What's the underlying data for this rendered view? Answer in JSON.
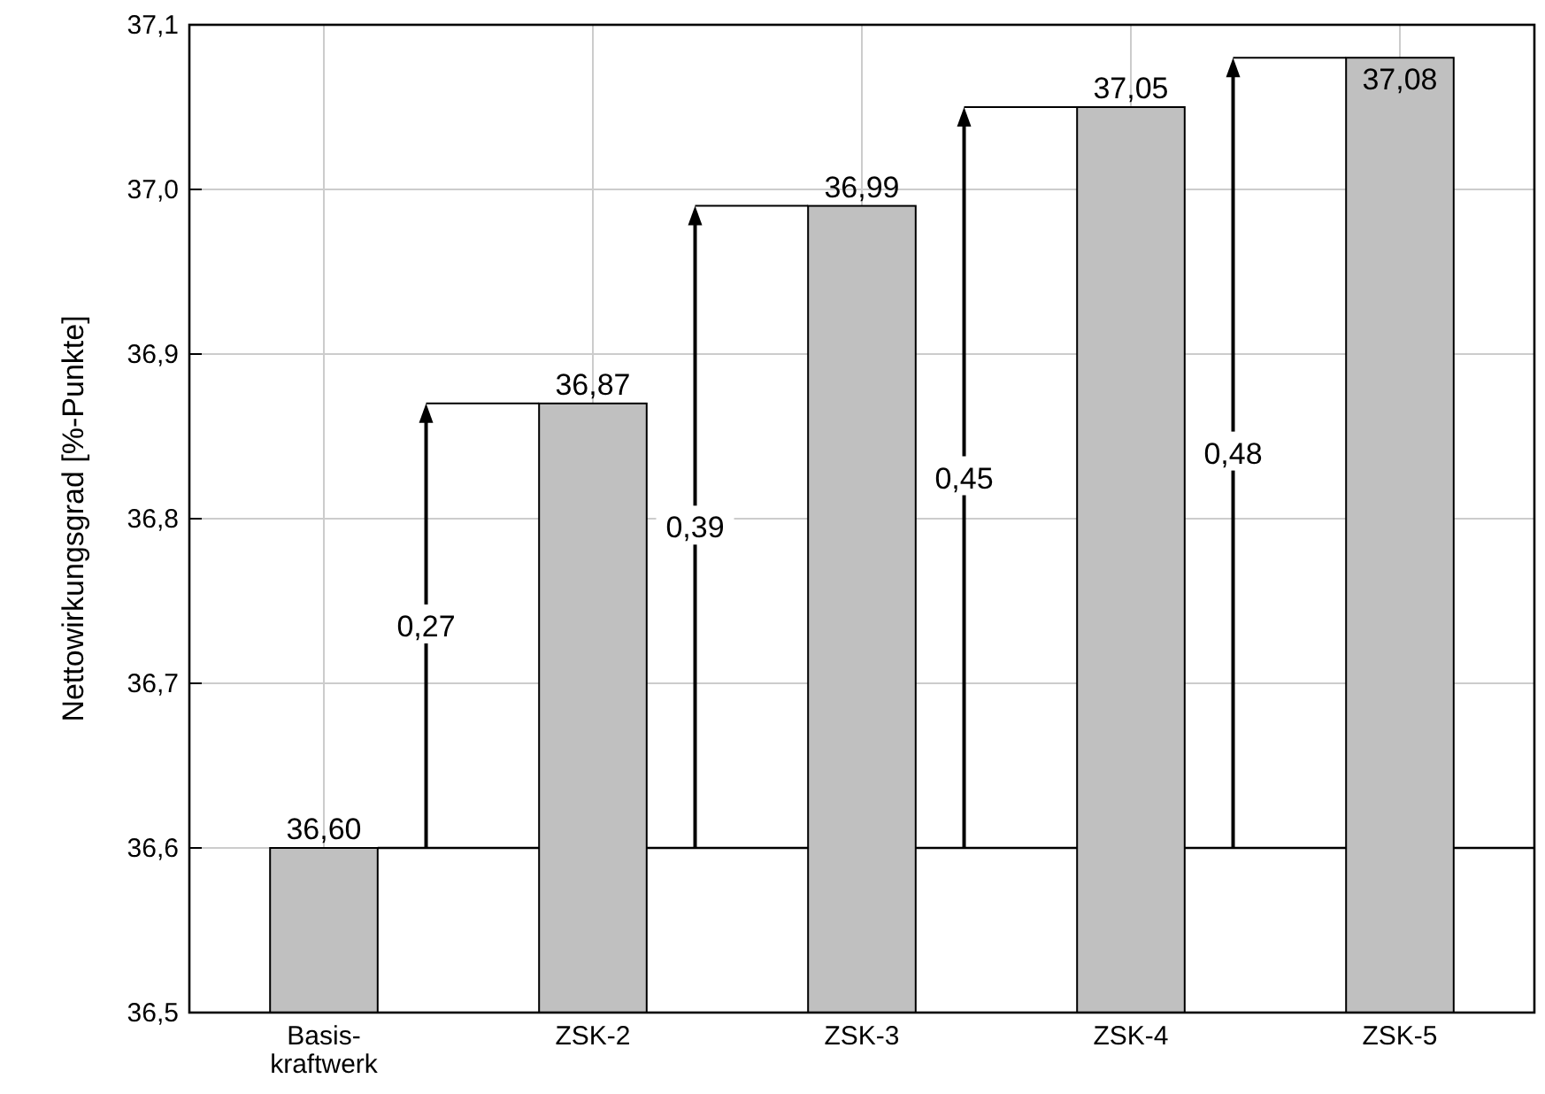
{
  "chart_data": {
    "type": "bar",
    "ylabel": "Nettowirkungsgrad [%-Punkte]",
    "categories": [
      "Basis-\nkraftwerk",
      "ZSK-2",
      "ZSK-3",
      "ZSK-4",
      "ZSK-5"
    ],
    "values": [
      36.6,
      36.87,
      36.99,
      37.05,
      37.08
    ],
    "value_labels": [
      "36,60",
      "36,87",
      "36,99",
      "37,05",
      "37,08"
    ],
    "color": "#c0c0c0",
    "ylim": [
      36.5,
      37.1
    ],
    "yticks": [
      {
        "value": 36.5,
        "label": "36,5"
      },
      {
        "value": 36.6,
        "label": "36,6"
      },
      {
        "value": 36.7,
        "label": "36,7"
      },
      {
        "value": 36.8,
        "label": "36,8"
      },
      {
        "value": 36.9,
        "label": "36,9"
      },
      {
        "value": 37.0,
        "label": "37,0"
      },
      {
        "value": 37.1,
        "label": "37,1"
      }
    ],
    "grid": true,
    "ref_lines": [
      {
        "axis": "y",
        "value": 36.6
      }
    ],
    "annotations": [
      "0,27",
      "0,39",
      "0,45",
      "0,48"
    ]
  }
}
